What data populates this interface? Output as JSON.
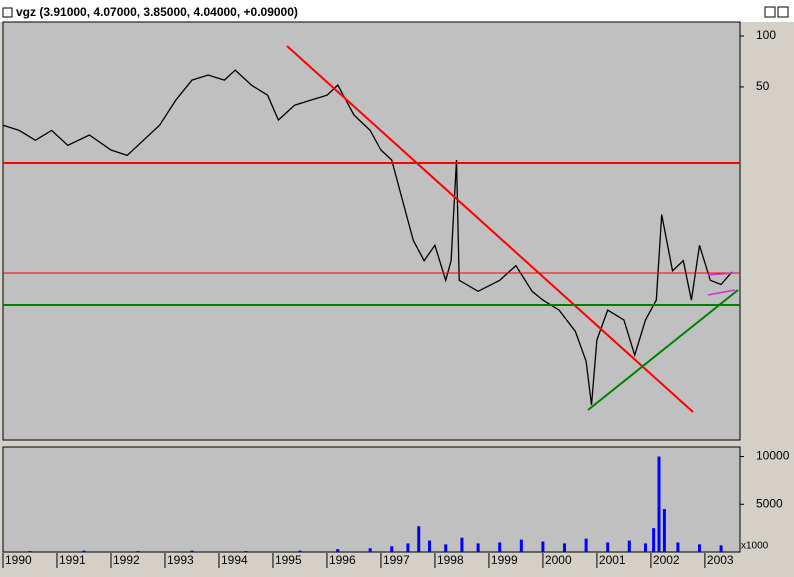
{
  "window_title": "vgz (3.91000, 4.07000, 3.85000, 4.04000, +0.09000)",
  "chart_data": [
    {
      "type": "line",
      "log_scale": true,
      "color": "#000000",
      "x": [
        1990.0,
        1990.3,
        1990.6,
        1990.9,
        1991.2,
        1991.6,
        1992.0,
        1992.3,
        1992.6,
        1992.9,
        1993.2,
        1993.5,
        1993.8,
        1994.1,
        1994.3,
        1994.6,
        1994.9,
        1995.1,
        1995.4,
        1995.7,
        1996.0,
        1996.2,
        1996.5,
        1996.8,
        1997.0,
        1997.2,
        1997.4,
        1997.6,
        1997.8,
        1998.0,
        1998.2,
        1998.3,
        1998.4,
        1998.45,
        1998.8,
        1999.2,
        1999.5,
        1999.8,
        2000.0,
        2000.3,
        2000.6,
        2000.8,
        2000.9,
        2001.0,
        2001.2,
        2001.5,
        2001.7,
        2001.9,
        2002.1,
        2002.2,
        2002.4,
        2002.6,
        2002.75,
        2002.9,
        2003.1,
        2003.3,
        2003.5
      ],
      "values": [
        29.7,
        27.7,
        24.2,
        27.7,
        22.6,
        26,
        21.2,
        19.7,
        24.2,
        29.7,
        41.8,
        54.9,
        58.8,
        54.9,
        62.9,
        51.3,
        44.7,
        31.9,
        39,
        41.8,
        44.7,
        51.3,
        34.1,
        27.7,
        21.2,
        18.5,
        10.7,
        6.2,
        4.7,
        5.8,
        3.6,
        4.7,
        18.5,
        3.6,
        3.1,
        3.6,
        4.4,
        3.1,
        2.75,
        2.4,
        1.8,
        1.2,
        0.66,
        1.6,
        2.4,
        2.1,
        1.3,
        2.1,
        2.75,
        8.8,
        4.1,
        4.7,
        2.75,
        5.8,
        3.6,
        3.4,
        4.04
      ],
      "xlim": [
        1990,
        2003.65
      ],
      "xticks": [
        1990,
        1991,
        1992,
        1993,
        1994,
        1995,
        1996,
        1997,
        1998,
        1999,
        2000,
        2001,
        2002,
        2003
      ],
      "ylim": [
        0.41,
        121
      ],
      "yticks": [
        50,
        100
      ]
    },
    {
      "type": "bar",
      "color": "#0000ff",
      "unit_label": "x1000",
      "x": [
        1990.5,
        1991.5,
        1992.5,
        1993.5,
        1994.5,
        1995.5,
        1996.2,
        1996.8,
        1997.2,
        1997.5,
        1997.7,
        1997.9,
        1998.2,
        1998.5,
        1998.8,
        1999.2,
        1999.6,
        2000.0,
        2000.4,
        2000.8,
        2001.2,
        2001.6,
        2001.9,
        2002.05,
        2002.15,
        2002.25,
        2002.5,
        2002.9,
        2003.3
      ],
      "values": [
        100,
        150,
        100,
        150,
        100,
        150,
        300,
        400,
        600,
        900,
        2700,
        1200,
        800,
        1500,
        900,
        1000,
        1300,
        1100,
        900,
        1400,
        1000,
        1200,
        900,
        2500,
        10000,
        4500,
        1000,
        800,
        700
      ],
      "xlim": [
        1990,
        2003.65
      ],
      "ylim": [
        0,
        11000
      ],
      "yticks": [
        5000,
        10000
      ]
    }
  ]
}
